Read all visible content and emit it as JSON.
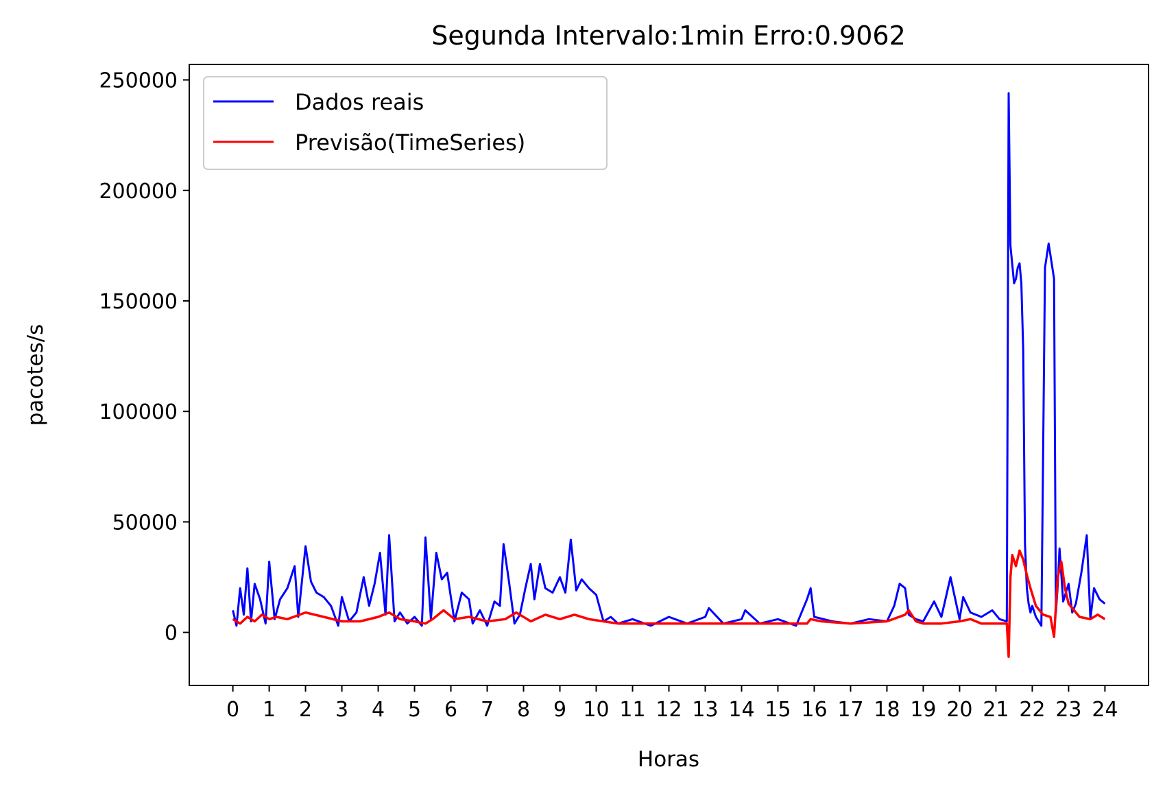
{
  "chart_data": {
    "type": "line",
    "title": "Segunda Intervalo:1min Erro:0.9062",
    "xlabel": "Horas",
    "ylabel": "pacotes/s",
    "xlim": [
      -1.2,
      25.2
    ],
    "ylim": [
      -24000,
      257000
    ],
    "xticks": [
      "0",
      "1",
      "2",
      "3",
      "4",
      "5",
      "6",
      "7",
      "8",
      "9",
      "10",
      "11",
      "12",
      "13",
      "14",
      "15",
      "16",
      "17",
      "18",
      "19",
      "20",
      "21",
      "22",
      "23",
      "24"
    ],
    "yticks": [
      "0",
      "50000",
      "100000",
      "150000",
      "200000",
      "250000"
    ],
    "grid": false,
    "legend_position": "top-left",
    "series": [
      {
        "name": "Dados reais",
        "color": "#0000ff",
        "x": [
          0,
          0.1,
          0.2,
          0.3,
          0.4,
          0.5,
          0.6,
          0.75,
          0.9,
          1.0,
          1.15,
          1.3,
          1.5,
          1.7,
          1.8,
          2.0,
          2.15,
          2.3,
          2.5,
          2.7,
          2.9,
          3.0,
          3.2,
          3.4,
          3.6,
          3.75,
          3.9,
          4.05,
          4.2,
          4.3,
          4.45,
          4.6,
          4.8,
          5.0,
          5.2,
          5.3,
          5.45,
          5.6,
          5.75,
          5.9,
          6.1,
          6.3,
          6.5,
          6.6,
          6.8,
          7.0,
          7.2,
          7.35,
          7.45,
          7.6,
          7.75,
          7.9,
          8.05,
          8.2,
          8.3,
          8.45,
          8.6,
          8.8,
          9.0,
          9.15,
          9.3,
          9.45,
          9.6,
          9.8,
          10.0,
          10.2,
          10.4,
          10.6,
          11.0,
          11.5,
          12.0,
          12.5,
          13.0,
          13.1,
          13.5,
          14.0,
          14.1,
          14.5,
          15.0,
          15.5,
          15.8,
          15.9,
          16.0,
          16.5,
          17.0,
          17.5,
          18.0,
          18.2,
          18.35,
          18.5,
          18.6,
          18.8,
          19.0,
          19.3,
          19.5,
          19.75,
          20.0,
          20.1,
          20.3,
          20.6,
          20.9,
          21.1,
          21.3,
          21.35,
          21.4,
          21.5,
          21.55,
          21.6,
          21.65,
          21.7,
          21.75,
          21.8,
          21.85,
          21.9,
          21.95,
          22.0,
          22.1,
          22.25,
          22.35,
          22.45,
          22.6,
          22.65,
          22.7,
          22.75,
          22.85,
          23.0,
          23.1,
          23.2,
          23.35,
          23.5,
          23.6,
          23.7,
          23.85,
          24.0
        ],
        "values": [
          10000,
          3000,
          20000,
          8000,
          29000,
          5000,
          22000,
          15000,
          4000,
          32000,
          6000,
          15000,
          20000,
          30000,
          7000,
          39000,
          23000,
          18000,
          16000,
          12000,
          3000,
          16000,
          5000,
          9000,
          25000,
          12000,
          22000,
          36000,
          8000,
          44000,
          5000,
          9000,
          4000,
          7000,
          3000,
          43000,
          6000,
          36000,
          24000,
          27000,
          5000,
          18000,
          15000,
          4000,
          10000,
          3000,
          14000,
          12000,
          40000,
          23000,
          4000,
          8000,
          20000,
          31000,
          15000,
          31000,
          20000,
          18000,
          25000,
          18000,
          42000,
          19000,
          24000,
          20000,
          17000,
          5000,
          7000,
          4000,
          6000,
          3000,
          7000,
          4000,
          7000,
          11000,
          4000,
          6000,
          10000,
          4000,
          6000,
          3000,
          15000,
          20000,
          7000,
          5000,
          4000,
          6000,
          5000,
          12000,
          22000,
          20000,
          8000,
          6000,
          5000,
          14000,
          7000,
          25000,
          6000,
          16000,
          9000,
          7000,
          10000,
          6000,
          5000,
          244000,
          175000,
          158000,
          160000,
          165000,
          167000,
          158000,
          128000,
          40000,
          20000,
          13000,
          9000,
          12000,
          7000,
          3000,
          165000,
          176000,
          160000,
          9000,
          21000,
          38000,
          14000,
          22000,
          9000,
          13000,
          27000,
          44000,
          6000,
          20000,
          15000,
          13000
        ]
      },
      {
        "name": "Previsão(TimeSeries)",
        "color": "#ff0000",
        "x": [
          0,
          0.2,
          0.4,
          0.6,
          0.8,
          1.0,
          1.2,
          1.5,
          2.0,
          2.5,
          3.0,
          3.5,
          4.0,
          4.3,
          4.6,
          5.0,
          5.3,
          5.5,
          5.8,
          6.1,
          6.5,
          7.0,
          7.5,
          7.8,
          8.2,
          8.6,
          9.0,
          9.4,
          9.8,
          10.2,
          10.6,
          11.0,
          12.0,
          13.0,
          14.0,
          15.0,
          15.8,
          15.9,
          16.2,
          17.0,
          18.0,
          18.5,
          18.6,
          18.8,
          19.0,
          19.5,
          20.0,
          20.3,
          20.6,
          21.0,
          21.3,
          21.35,
          21.4,
          21.45,
          21.55,
          21.65,
          21.75,
          21.85,
          21.95,
          22.1,
          22.3,
          22.5,
          22.6,
          22.7,
          22.8,
          22.9,
          23.0,
          23.3,
          23.6,
          23.8,
          24.0
        ],
        "values": [
          6000,
          4000,
          7000,
          5000,
          8000,
          6000,
          7000,
          6000,
          9000,
          7000,
          5000,
          5000,
          7000,
          9000,
          6000,
          5000,
          4000,
          6000,
          10000,
          6000,
          7000,
          5000,
          6000,
          9000,
          5000,
          8000,
          6000,
          8000,
          6000,
          5000,
          4000,
          4000,
          4000,
          4000,
          4000,
          4000,
          4000,
          6000,
          5000,
          4000,
          5000,
          8000,
          10000,
          5000,
          4000,
          4000,
          5000,
          6000,
          4000,
          4000,
          4000,
          -11000,
          25000,
          35000,
          30000,
          37000,
          33000,
          26000,
          20000,
          12000,
          8000,
          7000,
          -2000,
          25000,
          32000,
          20000,
          13000,
          7000,
          6000,
          8000,
          6000
        ]
      }
    ]
  }
}
